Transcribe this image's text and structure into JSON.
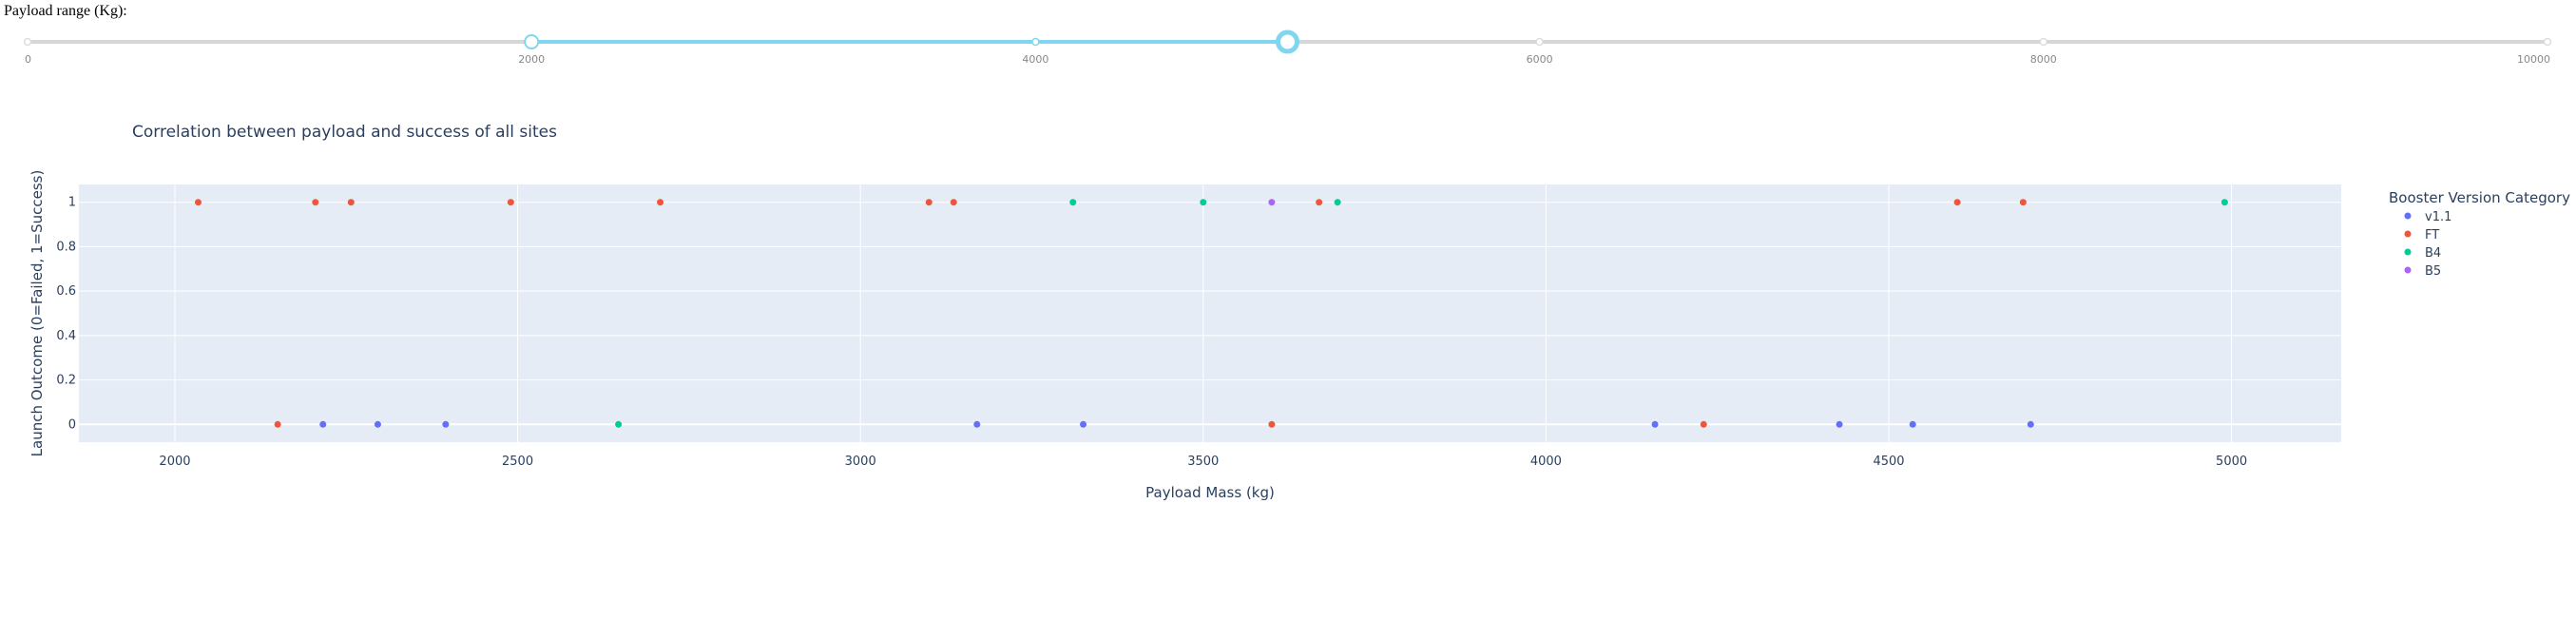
{
  "slider": {
    "label": "Payload range (Kg):",
    "min": 0,
    "max": 10000,
    "range": [
      2000,
      5000
    ],
    "marks": [
      "0",
      "2000",
      "4000",
      "6000",
      "8000",
      "10000"
    ],
    "track_color": "#d6d6d6",
    "active_color": "#7fd6ee"
  },
  "chart_data": {
    "type": "scatter",
    "title": "Correlation between payload and success of all sites",
    "xlabel": "Payload Mass (kg)",
    "ylabel": "Launch Outcome (0=Failed, 1=Success)",
    "xlim": [
      1860,
      5160
    ],
    "ylim": [
      -0.08,
      1.08
    ],
    "x_ticks": [
      2000,
      2500,
      3000,
      3500,
      4000,
      4500,
      5000
    ],
    "y_ticks": [
      0,
      0.2,
      0.4,
      0.6,
      0.8,
      1
    ],
    "y_tick_labels": [
      "0",
      "0.2",
      "0.4",
      "0.6",
      "0.8",
      "1"
    ],
    "grid": true,
    "legend_title": "Booster Version Category",
    "legend_position": "right",
    "plot_bg": "#e5ecf6",
    "series": [
      {
        "name": "v1.1",
        "color": "#636efa",
        "x": [
          2216,
          2296,
          2395,
          3170,
          3325,
          4159,
          4428,
          4535,
          4707
        ],
        "y": [
          0,
          0,
          0,
          0,
          0,
          0,
          0,
          0,
          0
        ]
      },
      {
        "name": "FT",
        "color": "#ef553b",
        "x": [
          2034,
          2150,
          2205,
          2257,
          2490,
          2708,
          3100,
          3136,
          3600,
          3669,
          4230,
          4600,
          4696
        ],
        "y": [
          1,
          0,
          1,
          1,
          1,
          1,
          1,
          1,
          0,
          1,
          0,
          1,
          1
        ]
      },
      {
        "name": "B4",
        "color": "#00cc96",
        "x": [
          2647,
          3310,
          3500,
          3696,
          4990
        ],
        "y": [
          0,
          1,
          1,
          1,
          1
        ]
      },
      {
        "name": "B5",
        "color": "#ab63fa",
        "x": [
          3600
        ],
        "y": [
          1
        ]
      }
    ]
  }
}
